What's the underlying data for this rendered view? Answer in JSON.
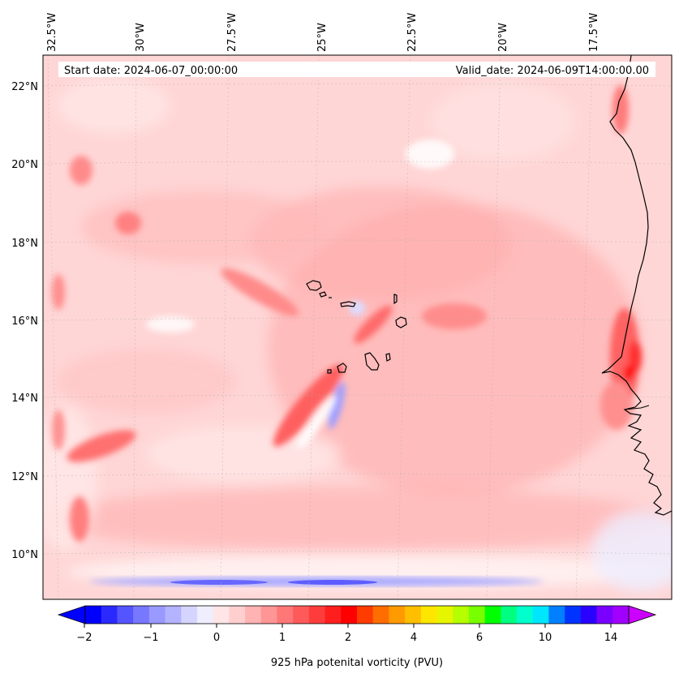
{
  "header": {
    "start_date": "Start date: 2024-06-07_00:00:00",
    "valid_date": "Valid_date: 2024-06-09T14:00:00.00"
  },
  "map": {
    "lon_labels": [
      "32.5°W",
      "30°W",
      "27.5°W",
      "25°W",
      "22.5°W",
      "20°W",
      "17.5°W"
    ],
    "lat_labels": [
      "22°N",
      "20°N",
      "18°N",
      "16°N",
      "14°N",
      "12°N",
      "10°N"
    ],
    "background_color": "#ffd6d6",
    "coastline_color": "#000000"
  },
  "colorbar": {
    "label": "925 hPa potenital vorticity (PVU)",
    "tick_labels": [
      "−2",
      "−1",
      "0",
      "1",
      "2",
      "4",
      "6",
      "10",
      "14"
    ],
    "colors": [
      "#0000ff",
      "#2a2aff",
      "#5555ff",
      "#7777ff",
      "#9999ff",
      "#b3b3ff",
      "#d4d4ff",
      "#eeeeff",
      "#ffe5e5",
      "#ffcfcf",
      "#ffb3b3",
      "#ff9595",
      "#ff7777",
      "#ff5a5a",
      "#ff3c3c",
      "#ff1e1e",
      "#ff0000",
      "#ff3b00",
      "#ff6d00",
      "#ff9a00",
      "#ffbe00",
      "#ffe600",
      "#e6f500",
      "#b5ff00",
      "#78ff00",
      "#00ff00",
      "#00ff80",
      "#00ffcc",
      "#00e6ff",
      "#0080ff",
      "#0033ff",
      "#2a00ff",
      "#7a00ff",
      "#a100ff"
    ],
    "under_color": "#0000ff",
    "over_color": "#cc00ff"
  }
}
